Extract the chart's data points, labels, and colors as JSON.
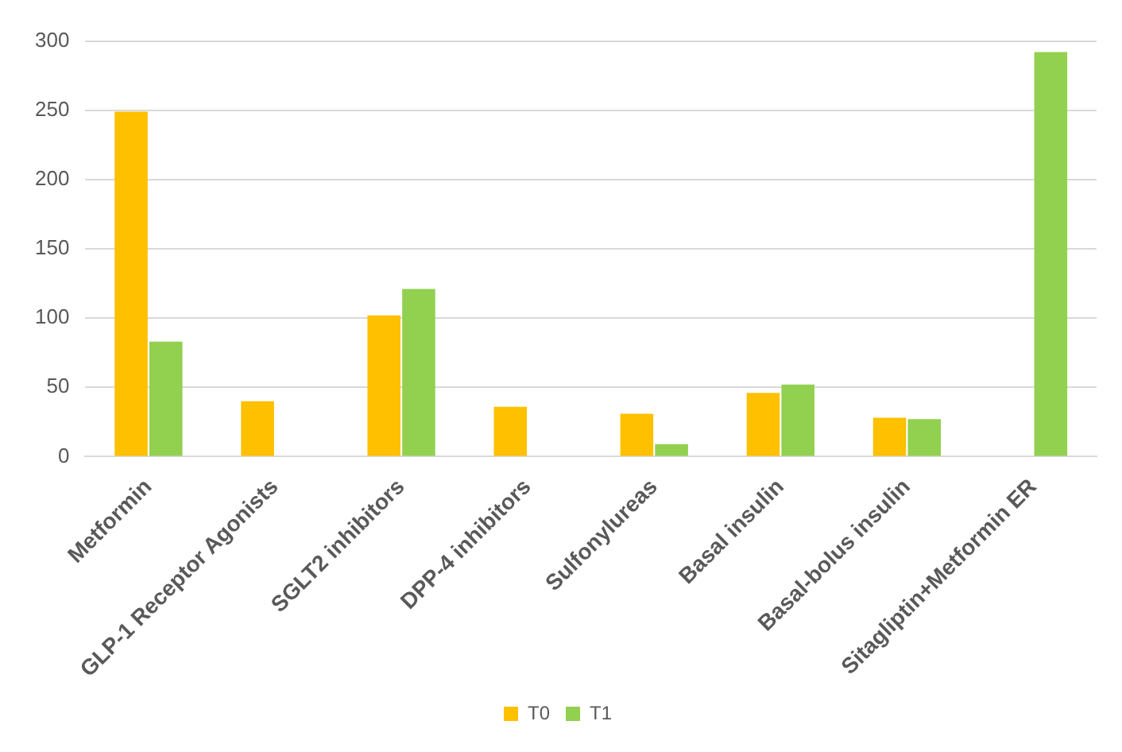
{
  "chart_data": {
    "type": "bar",
    "categories": [
      "Metformin",
      "GLP-1 Receptor Agonists",
      "SGLT2 inhibitors",
      "DPP-4 inhibitors",
      "Sulfonylureas",
      "Basal insulin",
      "Basal-bolus insulin",
      "Sitagliptin+Metformin ER"
    ],
    "series": [
      {
        "name": "T0",
        "color": "#ffc000",
        "values": [
          249,
          40,
          102,
          36,
          31,
          46,
          28,
          null
        ]
      },
      {
        "name": "T1",
        "color": "#92d050",
        "values": [
          83,
          null,
          121,
          null,
          9,
          52,
          27,
          292
        ]
      }
    ],
    "ylim": [
      0,
      300
    ],
    "yticks": [
      0,
      50,
      100,
      150,
      200,
      250,
      300
    ],
    "grid": "y",
    "legend": "bottom"
  }
}
